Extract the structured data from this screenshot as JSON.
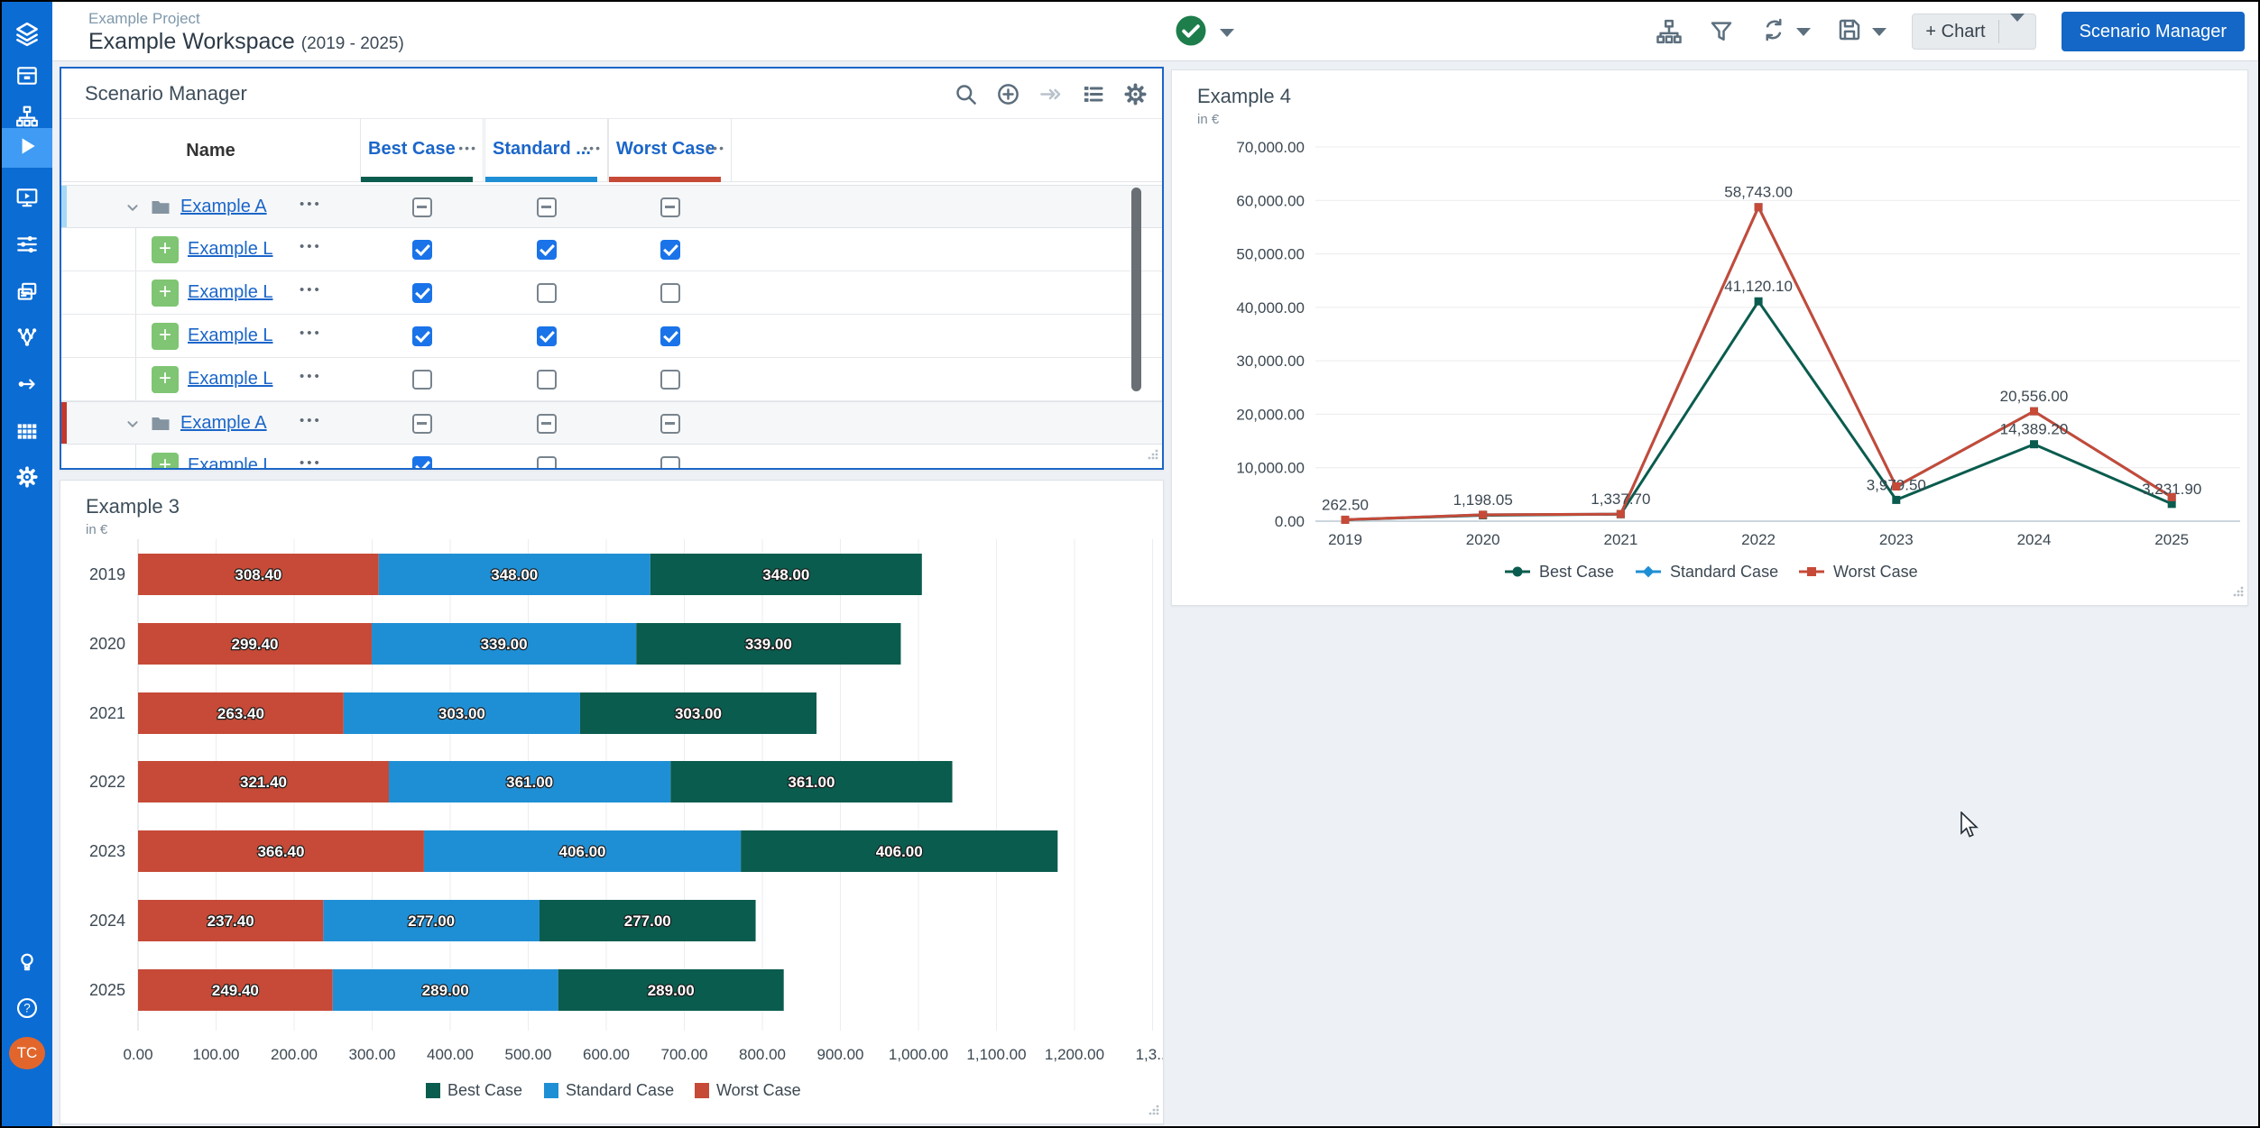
{
  "header": {
    "project_name": "Example Project",
    "workspace_name": "Example Workspace",
    "workspace_range": "(2019 - 2025)",
    "status_icon": "check-circle",
    "toolbar_icons": [
      "org-chart",
      "filter",
      "refresh",
      "save"
    ],
    "chart_button_label": "+ Chart",
    "scenario_manager_button_label": "Scenario Manager"
  },
  "sidebar": {
    "background_color": "#0b6cd4",
    "active_item": "play",
    "top_icons": [
      "logo",
      "archive",
      "org-chart",
      "play",
      "screen-play",
      "sliders",
      "pages",
      "nodes",
      "flow",
      "grid",
      "gear"
    ],
    "bottom_icons": [
      "bulb",
      "help"
    ],
    "avatar_initials": "TC",
    "avatar_color": "#e2662b"
  },
  "scenario_manager": {
    "title": "Scenario Manager",
    "header_icons": [
      "search",
      "plus-circle",
      "arrow-right",
      "list",
      "gear"
    ],
    "name_column_label": "Name",
    "menu_dots": "•••",
    "scenario_columns": [
      {
        "label": "Best Case",
        "underline_color": "#0a5c4e"
      },
      {
        "label": "Standard ...",
        "underline_color": "#1f8fd5"
      },
      {
        "label": "Worst Case",
        "underline_color": "#c64a37"
      }
    ],
    "rows": [
      {
        "type": "group",
        "label": "Example A",
        "accent_color": "#a5d9f7",
        "checks": [
          "indeterminate",
          "indeterminate",
          "indeterminate"
        ]
      },
      {
        "type": "child",
        "label": "Example L",
        "checks": [
          "checked",
          "checked",
          "checked"
        ]
      },
      {
        "type": "child",
        "label": "Example L",
        "checks": [
          "checked",
          "unchecked",
          "unchecked"
        ]
      },
      {
        "type": "child",
        "label": "Example L",
        "checks": [
          "checked",
          "checked",
          "checked"
        ]
      },
      {
        "type": "child",
        "label": "Example L",
        "checks": [
          "unchecked",
          "unchecked",
          "unchecked"
        ]
      },
      {
        "type": "group",
        "label": "Example A",
        "accent_color": "#c0392b",
        "checks": [
          "indeterminate",
          "indeterminate",
          "indeterminate"
        ]
      },
      {
        "type": "child",
        "label": "Example L",
        "checks": [
          "checked",
          "unchecked",
          "unchecked"
        ]
      }
    ]
  },
  "charts": {
    "example3": {
      "title": "Example 3",
      "subtitle": "in €",
      "chart_data": {
        "type": "bar",
        "orientation": "horizontal",
        "stacked": true,
        "categories": [
          "2019",
          "2020",
          "2021",
          "2022",
          "2023",
          "2024",
          "2025"
        ],
        "series": [
          {
            "name": "Worst Case",
            "color": "#c64a37",
            "values": [
              308.4,
              299.4,
              263.4,
              321.4,
              366.4,
              237.4,
              249.4
            ],
            "labels": [
              "308.40",
              "299.40",
              "263.40",
              "321.40",
              "366.40",
              "237.40",
              "249.40"
            ]
          },
          {
            "name": "Standard Case",
            "color": "#1f8fd5",
            "values": [
              348,
              339,
              303,
              361,
              406,
              277,
              289
            ],
            "labels": [
              "348.00",
              "339.00",
              "303.00",
              "361.00",
              "406.00",
              "277.00",
              "289.00"
            ]
          },
          {
            "name": "Best Case",
            "color": "#0a5c4e",
            "values": [
              348,
              339,
              303,
              361,
              406,
              277,
              289
            ],
            "labels": [
              "348.00",
              "339.00",
              "303.00",
              "361.00",
              "406.00",
              "277.00",
              "289.00"
            ]
          }
        ],
        "legend": [
          {
            "label": "Best Case",
            "color": "#0a5c4e"
          },
          {
            "label": "Standard Case",
            "color": "#1f8fd5"
          },
          {
            "label": "Worst Case",
            "color": "#c64a37"
          }
        ],
        "xlim": [
          0,
          1350
        ],
        "xtick_step": 100,
        "xtick_labels": [
          "0.00",
          "100.00",
          "200.00",
          "300.00",
          "400.00",
          "500.00",
          "600.00",
          "700.00",
          "800.00",
          "900.00",
          "1,000.00",
          "1,100.00",
          "1,200.00",
          "1,3..."
        ],
        "grid": true,
        "legend_position": "bottom"
      }
    },
    "example4": {
      "title": "Example 4",
      "subtitle": "in €",
      "chart_data": {
        "type": "line",
        "x": [
          "2019",
          "2020",
          "2021",
          "2022",
          "2023",
          "2024",
          "2025"
        ],
        "ylim": [
          0,
          70000
        ],
        "ytick_labels": [
          "0.00",
          "10,000.00",
          "20,000.00",
          "30,000.00",
          "40,000.00",
          "50,000.00",
          "60,000.00",
          "70,000.00"
        ],
        "series": [
          {
            "name": "Best Case",
            "color": "#0a5c4e",
            "marker": "circle",
            "values": [
              250,
              1100,
              1300,
              41120.1,
              3979.5,
              14389.2,
              3231.9
            ],
            "point_labels": [
              "",
              "",
              "",
              "41,120.10",
              "3,979.50",
              "14,389.20",
              "3,231.90"
            ]
          },
          {
            "name": "Standard Case",
            "color": "#1f8fd5",
            "marker": "diamond",
            "values": [
              262.5,
              1198.05,
              1337.7,
              58743,
              6500,
              20556,
              4500
            ],
            "point_labels": [
              "",
              "",
              "",
              "",
              "",
              "",
              ""
            ]
          },
          {
            "name": "Worst Case",
            "color": "#c64a37",
            "marker": "square",
            "values": [
              262.5,
              1198.05,
              1337.7,
              58743,
              6500,
              20556,
              4500
            ],
            "point_labels": [
              "262.50",
              "1,198.05",
              "1,337.70",
              "58,743.00",
              "",
              "20,556.00",
              ""
            ]
          }
        ],
        "grid": true,
        "legend_position": "bottom"
      }
    }
  }
}
